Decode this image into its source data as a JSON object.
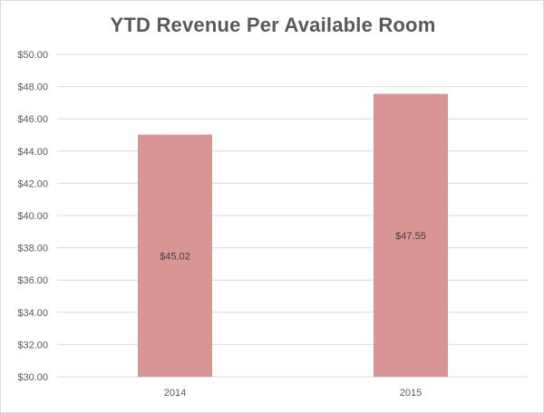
{
  "chart_data": {
    "type": "bar",
    "title": "YTD Revenue Per Available Room",
    "xlabel": "",
    "ylabel": "",
    "categories": [
      "2014",
      "2015"
    ],
    "values": [
      45.02,
      47.55
    ],
    "data_labels": [
      "$45.02",
      "$47.55"
    ],
    "ylim": [
      30,
      50
    ],
    "y_ticks": [
      "$30.00",
      "$32.00",
      "$34.00",
      "$36.00",
      "$38.00",
      "$40.00",
      "$42.00",
      "$44.00",
      "$46.00",
      "$48.00",
      "$50.00"
    ],
    "grid": true,
    "legend": "none",
    "bar_color": "#d99594",
    "grid_color": "#d9d9d9"
  }
}
